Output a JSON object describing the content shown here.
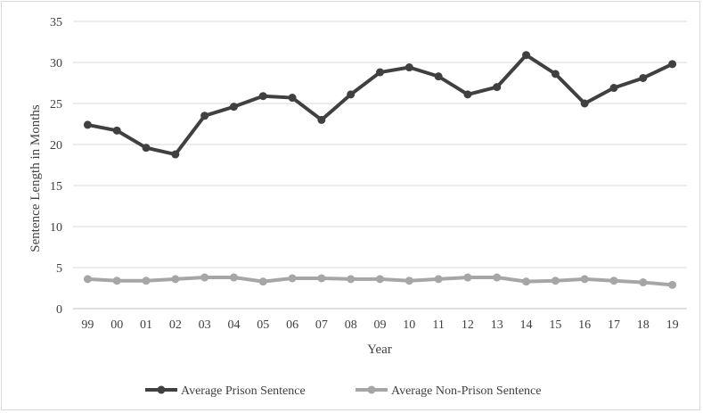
{
  "chart_data": {
    "type": "line",
    "title": "",
    "xlabel": "Year",
    "ylabel": "Sentence Length in Months",
    "categories": [
      "99",
      "00",
      "01",
      "02",
      "03",
      "04",
      "05",
      "06",
      "07",
      "08",
      "09",
      "10",
      "11",
      "12",
      "13",
      "14",
      "15",
      "16",
      "17",
      "18",
      "19"
    ],
    "ylim": [
      0,
      35
    ],
    "yticks": [
      0,
      5,
      10,
      15,
      20,
      25,
      30,
      35
    ],
    "grid": true,
    "legend_position": "bottom",
    "series": [
      {
        "name": "Average Prison Sentence",
        "color": "#404040",
        "values": [
          22.4,
          21.7,
          19.6,
          18.8,
          23.5,
          24.6,
          25.9,
          25.7,
          23.0,
          26.1,
          28.8,
          29.4,
          28.3,
          26.1,
          27.0,
          30.9,
          28.6,
          25.0,
          26.9,
          28.1,
          29.8
        ]
      },
      {
        "name": "Average Non-Prison Sentence",
        "color": "#a6a6a6",
        "values": [
          3.6,
          3.4,
          3.4,
          3.6,
          3.8,
          3.8,
          3.3,
          3.7,
          3.7,
          3.6,
          3.6,
          3.4,
          3.6,
          3.8,
          3.8,
          3.3,
          3.4,
          3.6,
          3.4,
          3.2,
          2.9
        ]
      }
    ]
  }
}
